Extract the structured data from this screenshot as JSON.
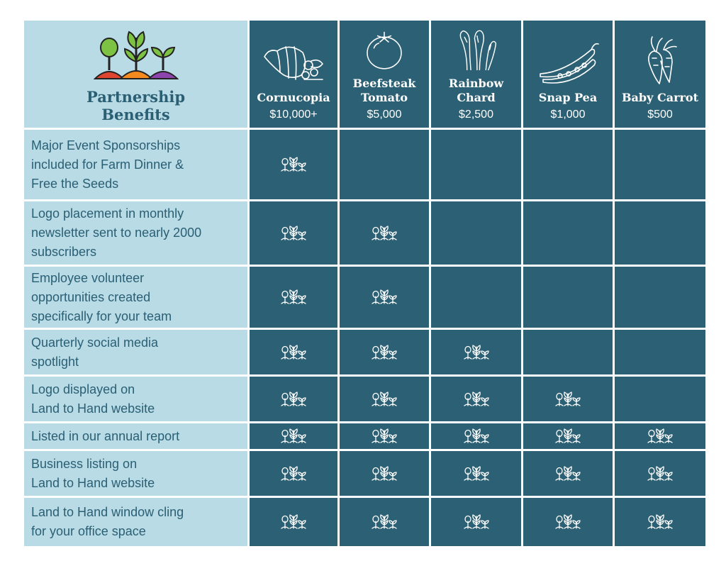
{
  "header": {
    "title_line1": "Partnership",
    "title_line2": "Benefits"
  },
  "tiers": [
    {
      "name_line1": "Cornucopia",
      "name_line2": "",
      "amount": "$10,000+",
      "icon": "cornucopia-icon"
    },
    {
      "name_line1": "Beefsteak",
      "name_line2": "Tomato",
      "amount": "$5,000",
      "icon": "tomato-icon"
    },
    {
      "name_line1": "Rainbow",
      "name_line2": "Chard",
      "amount": "$2,500",
      "icon": "chard-icon"
    },
    {
      "name_line1": "Snap Pea",
      "name_line2": "",
      "amount": "$1,000",
      "icon": "pea-pod-icon"
    },
    {
      "name_line1": "Baby Carrot",
      "name_line2": "",
      "amount": "$500",
      "icon": "carrot-icon"
    }
  ],
  "benefits": [
    {
      "lines": [
        "Major Event Sponsorships",
        "included for Farm Dinner &",
        "Free the Seeds"
      ],
      "included": [
        true,
        false,
        false,
        false,
        false
      ]
    },
    {
      "lines": [
        "Logo placement in monthly",
        "newsletter sent to nearly 2000",
        "subscribers"
      ],
      "included": [
        true,
        true,
        false,
        false,
        false
      ]
    },
    {
      "lines": [
        "Employee volunteer",
        "opportunities created",
        "specifically for your team"
      ],
      "included": [
        true,
        true,
        false,
        false,
        false
      ]
    },
    {
      "lines": [
        "Quarterly social media",
        "spotlight"
      ],
      "included": [
        true,
        true,
        true,
        false,
        false
      ]
    },
    {
      "lines": [
        "Logo displayed on",
        "Land to Hand website"
      ],
      "included": [
        true,
        true,
        true,
        true,
        false
      ]
    },
    {
      "lines": [
        "Listed in our annual report"
      ],
      "included": [
        true,
        true,
        true,
        true,
        true
      ]
    },
    {
      "lines": [
        "Business listing on",
        "Land to Hand website"
      ],
      "included": [
        true,
        true,
        true,
        true,
        true
      ]
    },
    {
      "lines": [
        "Land to Hand window cling",
        "for your office space"
      ],
      "included": [
        true,
        true,
        true,
        true,
        true
      ]
    }
  ],
  "colors": {
    "light": "#b9dbe6",
    "dark": "#2c6074",
    "text": "#2a5f74",
    "sprout_green": "#7dc242",
    "sprout_orange": "#f58a1f",
    "sprout_purple": "#8e44ad"
  }
}
